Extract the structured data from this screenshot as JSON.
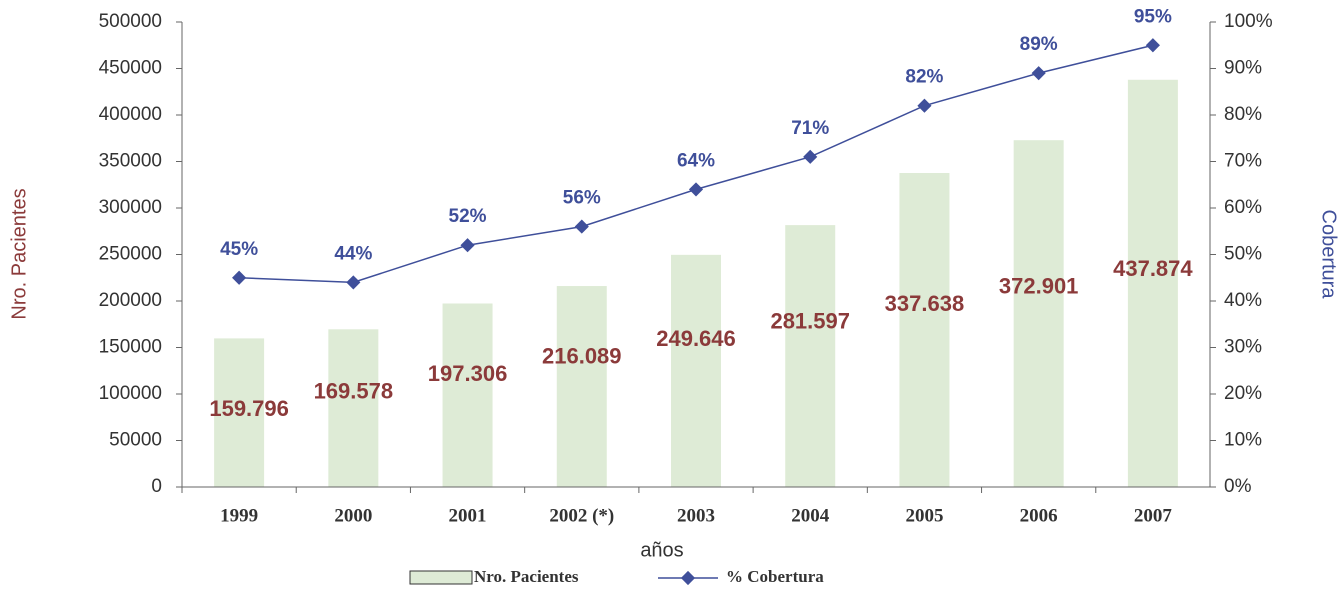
{
  "chart_data": {
    "type": "bar-line",
    "xlabel": "años",
    "ylabel": "Nro. Pacientes",
    "y2label": "Cobertura",
    "categories": [
      "1999",
      "2000",
      "2001",
      "2002 (*)",
      "2003",
      "2004",
      "2005",
      "2006",
      "2007"
    ],
    "series": [
      {
        "name": "Nro. Pacientes",
        "type": "bar",
        "color": "#deebd6",
        "label_color": "#8b3a3a",
        "values": [
          159796,
          169578,
          197306,
          216089,
          249646,
          281597,
          337638,
          372901,
          437874
        ],
        "value_labels": [
          "159.796",
          "169.578",
          "197.306",
          "216.089",
          "249.646",
          "281.597",
          "337.638",
          "372.901",
          "437.874"
        ]
      },
      {
        "name": "% Cobertura",
        "type": "line",
        "axis": "y2",
        "color": "#3f4f9a",
        "values": [
          45,
          44,
          52,
          56,
          64,
          71,
          82,
          89,
          95
        ],
        "value_labels": [
          "45%",
          "44%",
          "52%",
          "56%",
          "64%",
          "71%",
          "82%",
          "89%",
          "95%"
        ]
      }
    ],
    "ylim": [
      0,
      500000
    ],
    "yticks": [
      0,
      50000,
      100000,
      150000,
      200000,
      250000,
      300000,
      350000,
      400000,
      450000,
      500000
    ],
    "y2lim": [
      0,
      100
    ],
    "y2ticks": [
      {
        "value": 0,
        "label": "0%"
      },
      {
        "value": 10,
        "label": "10%"
      },
      {
        "value": 20,
        "label": "20%"
      },
      {
        "value": 30,
        "label": "30%"
      },
      {
        "value": 40,
        "label": "40%"
      },
      {
        "value": 50,
        "label": "50%"
      },
      {
        "value": 60,
        "label": "60%"
      },
      {
        "value": 70,
        "label": "70%"
      },
      {
        "value": 80,
        "label": "80%"
      },
      {
        "value": 90,
        "label": "90%"
      },
      {
        "value": 100,
        "label": "100%"
      }
    ],
    "legend": "bottom"
  }
}
